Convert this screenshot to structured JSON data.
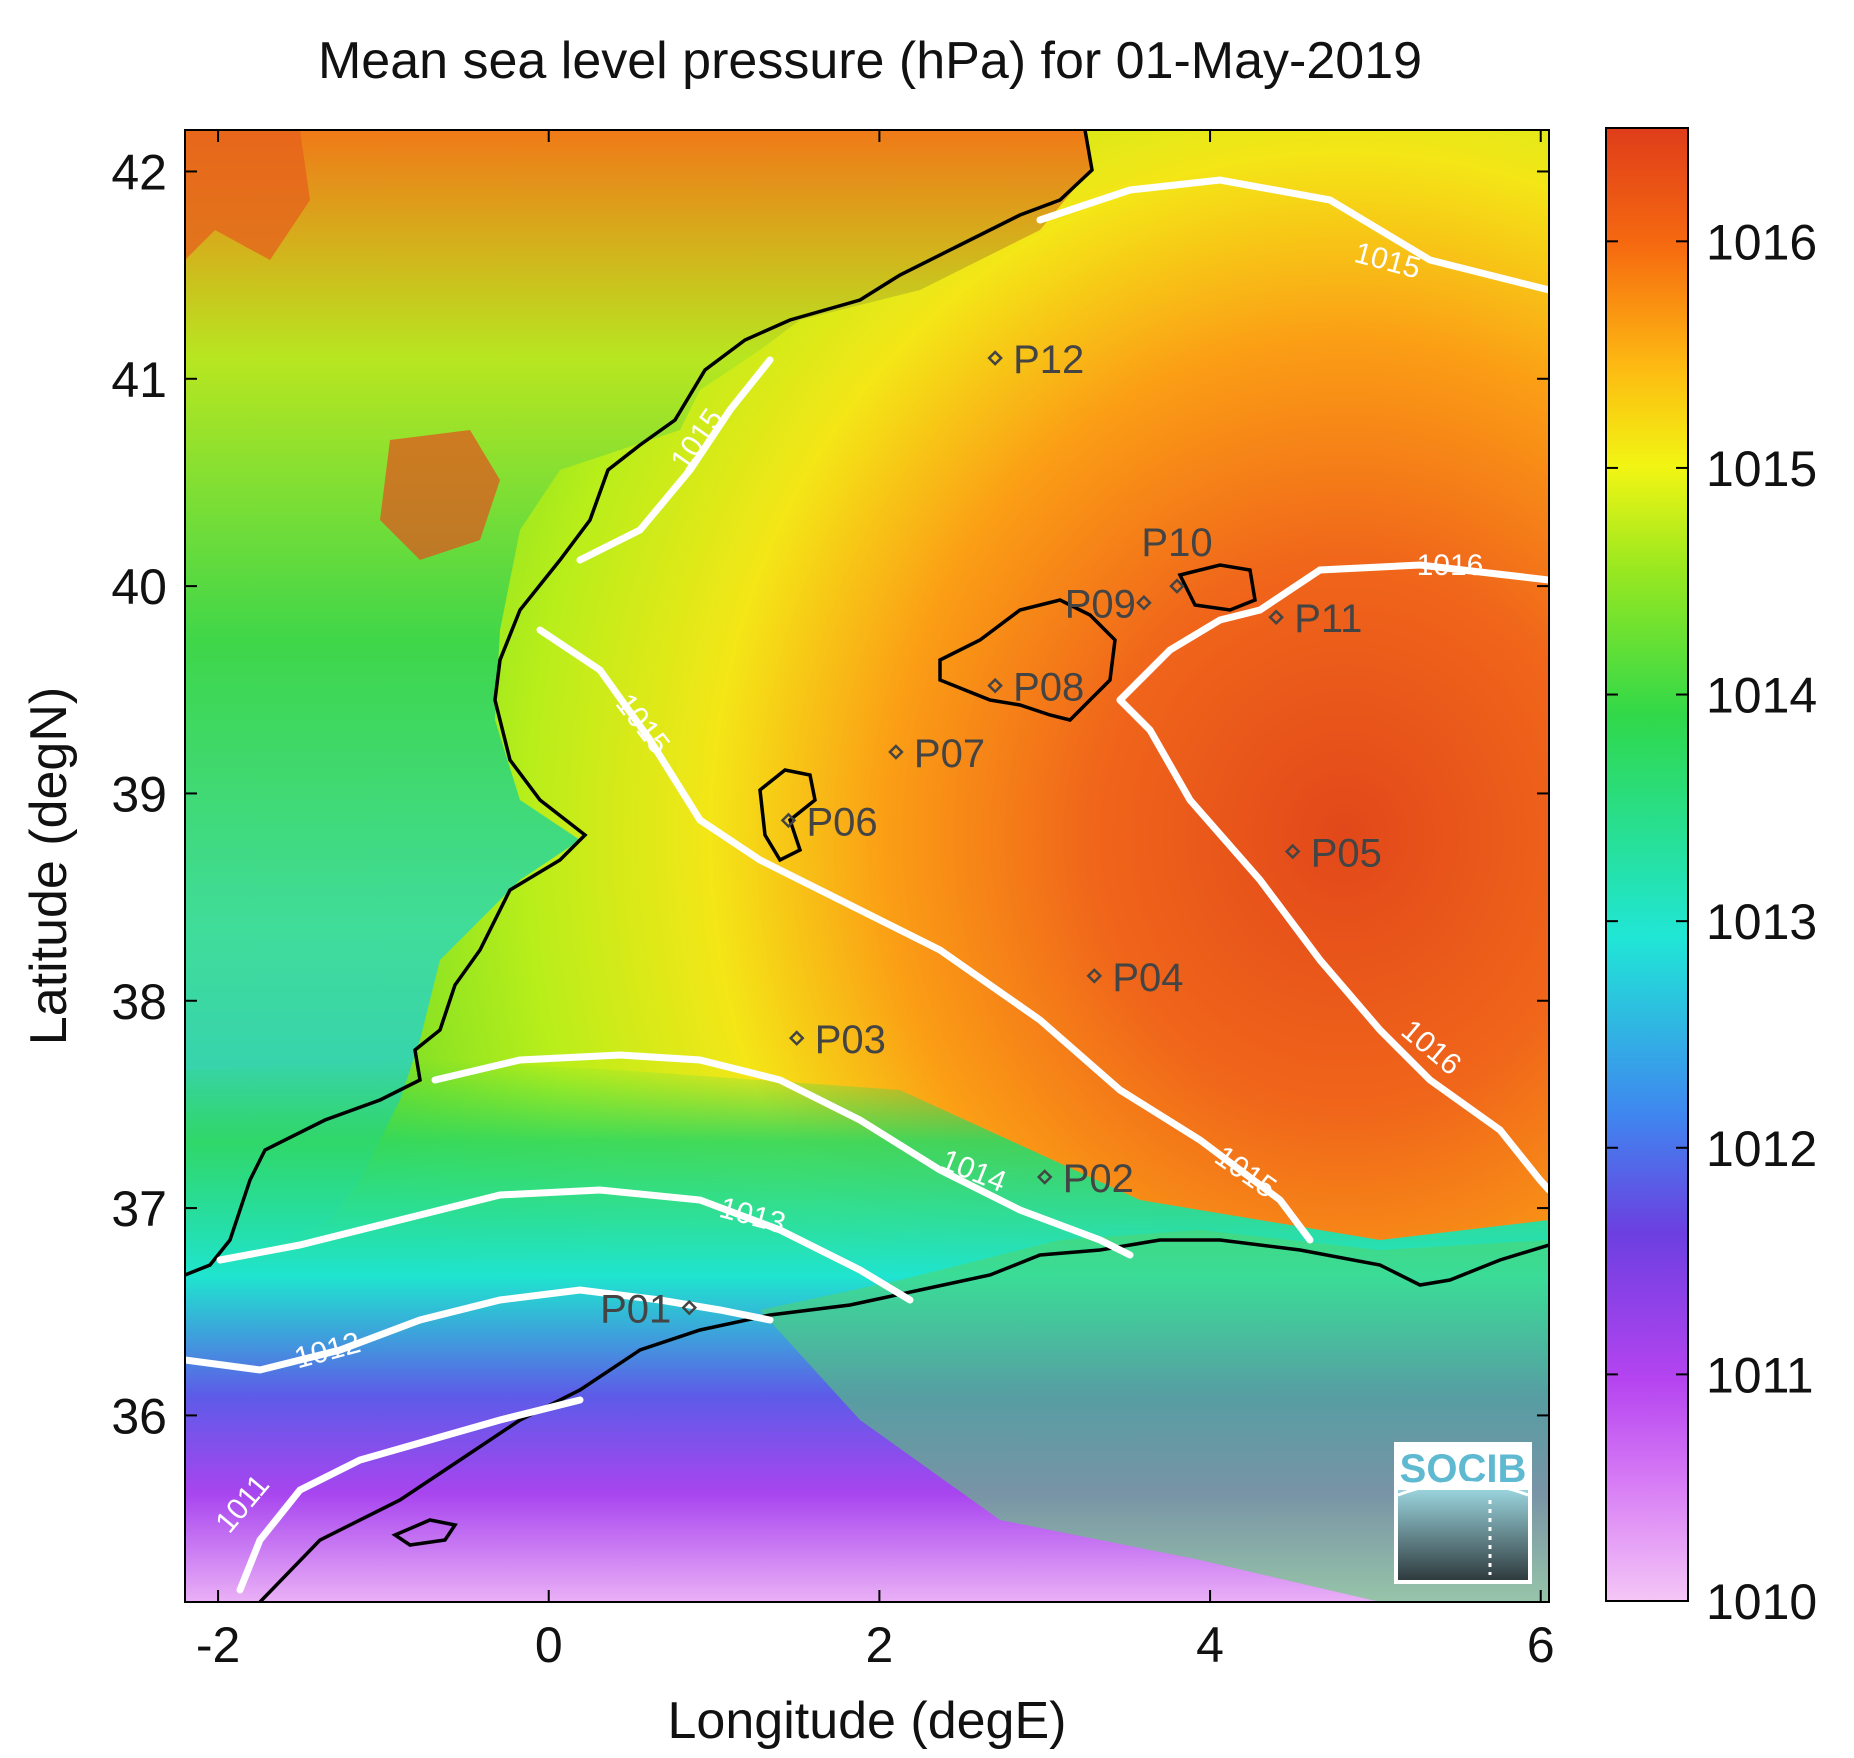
{
  "title": "Mean sea level pressure (hPa) for 01-May-2019",
  "chart_data": {
    "type": "heatmap",
    "title": "Mean sea level pressure (hPa) for 01-May-2019",
    "xlabel": "Longitude (degE)",
    "ylabel": "Latitude (degN)",
    "xlim": [
      -2.2,
      6.05
    ],
    "ylim": [
      35.1,
      42.2
    ],
    "xticks": [
      "-2",
      "0",
      "2",
      "4",
      "6"
    ],
    "yticks": [
      "36",
      "37",
      "38",
      "39",
      "40",
      "41",
      "42"
    ],
    "colorbar": {
      "min": 1010,
      "max": 1016.5,
      "ticks": [
        "1010",
        "1011",
        "1012",
        "1013",
        "1014",
        "1015",
        "1016"
      ],
      "colors": [
        "#f4c6f6",
        "#b544f0",
        "#6c3fe0",
        "#3f86ef",
        "#20e6d6",
        "#30d84a",
        "#99e820",
        "#f2f513",
        "#fdb812",
        "#f66a10",
        "#df3d1a"
      ]
    },
    "contours": [
      {
        "level": 1011,
        "label": "1011"
      },
      {
        "level": 1012,
        "label": "1012"
      },
      {
        "level": 1013,
        "label": "1013"
      },
      {
        "level": 1014,
        "label": "1014"
      },
      {
        "level": 1015,
        "label": "1015"
      },
      {
        "level": 1016,
        "label": "1016"
      }
    ],
    "points": [
      {
        "name": "P01",
        "lon": 0.85,
        "lat": 36.52
      },
      {
        "name": "P02",
        "lon": 3.0,
        "lat": 37.15
      },
      {
        "name": "P03",
        "lon": 1.5,
        "lat": 37.82
      },
      {
        "name": "P04",
        "lon": 3.3,
        "lat": 38.12
      },
      {
        "name": "P05",
        "lon": 4.5,
        "lat": 38.72
      },
      {
        "name": "P06",
        "lon": 1.45,
        "lat": 38.87
      },
      {
        "name": "P07",
        "lon": 2.1,
        "lat": 39.2
      },
      {
        "name": "P08",
        "lon": 2.7,
        "lat": 39.52
      },
      {
        "name": "P09",
        "lon": 3.6,
        "lat": 39.92
      },
      {
        "name": "P10",
        "lon": 3.8,
        "lat": 40.0
      },
      {
        "name": "P11",
        "lon": 4.4,
        "lat": 39.85
      },
      {
        "name": "P12",
        "lon": 2.7,
        "lat": 41.1
      }
    ]
  },
  "logo": {
    "text": "SOCIB"
  }
}
